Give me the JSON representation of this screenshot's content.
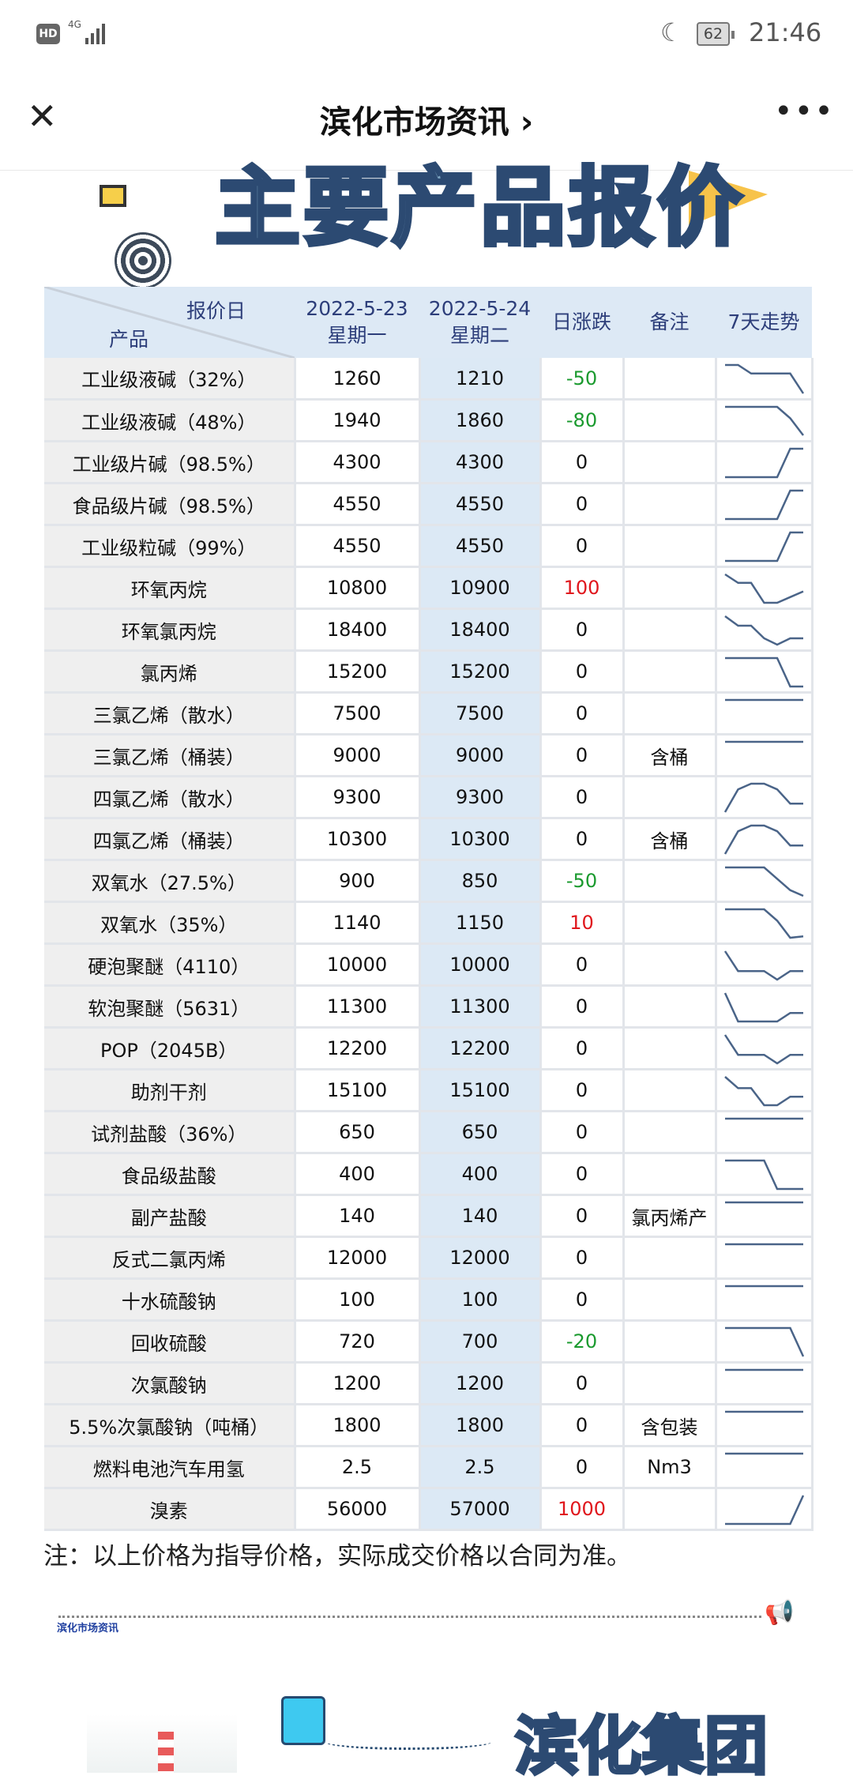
{
  "status_bar": {
    "hd": "HD",
    "network": "4G",
    "battery": "62",
    "time": "21:46"
  },
  "nav": {
    "title": "滨化市场资讯 ›",
    "close_icon": "close-icon",
    "more_icon": "more-icon"
  },
  "banner": {
    "title": "主要产品报价"
  },
  "table": {
    "header": {
      "corner_top": "报价日",
      "corner_bottom": "产品",
      "date1": "2022-5-23",
      "day1": "星期一",
      "date2": "2022-5-24",
      "day2": "星期二",
      "change": "日涨跌",
      "note": "备注",
      "trend": "7天走势"
    },
    "colors": {
      "up": "#e0161c",
      "down": "#1a9a2e",
      "trend_line": "#4a6488"
    },
    "rows": [
      {
        "product": "工业级液碱（32%）",
        "p1": "1260",
        "p2": "1210",
        "change": "-50",
        "note": "",
        "trend": [
          10,
          10,
          7,
          7,
          7,
          7,
          0
        ]
      },
      {
        "product": "工业级液碱（48%）",
        "p1": "1940",
        "p2": "1860",
        "change": "-80",
        "note": "",
        "trend": [
          10,
          10,
          10,
          10,
          10,
          6,
          0
        ]
      },
      {
        "product": "工业级片碱（98.5%）",
        "p1": "4300",
        "p2": "4300",
        "change": "0",
        "note": "",
        "trend": [
          0,
          0,
          0,
          0,
          0,
          10,
          10
        ]
      },
      {
        "product": "食品级片碱（98.5%）",
        "p1": "4550",
        "p2": "4550",
        "change": "0",
        "note": "",
        "trend": [
          0,
          0,
          0,
          0,
          0,
          10,
          10
        ]
      },
      {
        "product": "工业级粒碱（99%）",
        "p1": "4550",
        "p2": "4550",
        "change": "0",
        "note": "",
        "trend": [
          0,
          0,
          0,
          0,
          0,
          10,
          10
        ]
      },
      {
        "product": "环氧丙烷",
        "p1": "10800",
        "p2": "10900",
        "change": "100",
        "note": "",
        "trend": [
          10,
          7,
          7,
          0,
          0,
          2,
          4
        ]
      },
      {
        "product": "环氧氯丙烷",
        "p1": "18400",
        "p2": "18400",
        "change": "0",
        "note": "",
        "trend": [
          10,
          7,
          7,
          3,
          1,
          3,
          3
        ]
      },
      {
        "product": "氯丙烯",
        "p1": "15200",
        "p2": "15200",
        "change": "0",
        "note": "",
        "trend": [
          10,
          10,
          10,
          10,
          10,
          0,
          0
        ]
      },
      {
        "product": "三氯乙烯（散水）",
        "p1": "7500",
        "p2": "7500",
        "change": "0",
        "note": "",
        "trend": [
          5,
          5,
          5,
          5,
          5,
          5,
          5
        ]
      },
      {
        "product": "三氯乙烯（桶装）",
        "p1": "9000",
        "p2": "9000",
        "change": "0",
        "note": "含桶",
        "trend": [
          5,
          5,
          5,
          5,
          5,
          5,
          5
        ]
      },
      {
        "product": "四氯乙烯（散水）",
        "p1": "9300",
        "p2": "9300",
        "change": "0",
        "note": "",
        "trend": [
          0,
          8,
          10,
          10,
          8,
          3,
          3
        ]
      },
      {
        "product": "四氯乙烯（桶装）",
        "p1": "10300",
        "p2": "10300",
        "change": "0",
        "note": "含桶",
        "trend": [
          0,
          8,
          10,
          10,
          8,
          3,
          3
        ]
      },
      {
        "product": "双氧水（27.5%）",
        "p1": "900",
        "p2": "850",
        "change": "-50",
        "note": "",
        "trend": [
          10,
          10,
          10,
          10,
          6,
          2,
          0
        ]
      },
      {
        "product": "双氧水（35%）",
        "p1": "1140",
        "p2": "1150",
        "change": "10",
        "note": "",
        "trend": [
          10,
          10,
          10,
          10,
          6,
          0,
          0.5
        ]
      },
      {
        "product": "硬泡聚醚（4110）",
        "p1": "10000",
        "p2": "10000",
        "change": "0",
        "note": "",
        "trend": [
          10,
          3,
          3,
          3,
          0,
          3,
          3
        ]
      },
      {
        "product": "软泡聚醚（5631）",
        "p1": "11300",
        "p2": "11300",
        "change": "0",
        "note": "",
        "trend": [
          10,
          0,
          0,
          0,
          0,
          3,
          3
        ]
      },
      {
        "product": "POP（2045B）",
        "p1": "12200",
        "p2": "12200",
        "change": "0",
        "note": "",
        "trend": [
          10,
          3,
          3,
          3,
          0,
          3,
          3
        ]
      },
      {
        "product": "助剂干剂",
        "p1": "15100",
        "p2": "15100",
        "change": "0",
        "note": "",
        "trend": [
          10,
          6,
          6,
          0,
          0,
          3,
          3
        ]
      },
      {
        "product": "试剂盐酸（36%）",
        "p1": "650",
        "p2": "650",
        "change": "0",
        "note": "",
        "trend": [
          5,
          5,
          5,
          5,
          5,
          5,
          5
        ]
      },
      {
        "product": "食品级盐酸",
        "p1": "400",
        "p2": "400",
        "change": "0",
        "note": "",
        "trend": [
          10,
          10,
          10,
          10,
          0,
          0,
          0
        ]
      },
      {
        "product": "副产盐酸",
        "p1": "140",
        "p2": "140",
        "change": "0",
        "note": "氯丙烯产",
        "trend": [
          5,
          5,
          5,
          5,
          5,
          5,
          5
        ]
      },
      {
        "product": "反式二氯丙烯",
        "p1": "12000",
        "p2": "12000",
        "change": "0",
        "note": "",
        "trend": [
          5,
          5,
          5,
          5,
          5,
          5,
          5
        ]
      },
      {
        "product": "十水硫酸钠",
        "p1": "100",
        "p2": "100",
        "change": "0",
        "note": "",
        "trend": [
          5,
          5,
          5,
          5,
          5,
          5,
          5
        ]
      },
      {
        "product": "回收硫酸",
        "p1": "720",
        "p2": "700",
        "change": "-20",
        "note": "",
        "trend": [
          10,
          10,
          10,
          10,
          10,
          10,
          0
        ]
      },
      {
        "product": "次氯酸钠",
        "p1": "1200",
        "p2": "1200",
        "change": "0",
        "note": "",
        "trend": [
          5,
          5,
          5,
          5,
          5,
          5,
          5
        ]
      },
      {
        "product": "5.5%次氯酸钠（吨桶）",
        "p1": "1800",
        "p2": "1800",
        "change": "0",
        "note": "含包装",
        "trend": [
          5,
          5,
          5,
          5,
          5,
          5,
          5
        ]
      },
      {
        "product": "燃料电池汽车用氢",
        "p1": "2.5",
        "p2": "2.5",
        "change": "0",
        "note": "Nm3",
        "trend": [
          5,
          5,
          5,
          5,
          5,
          5,
          5
        ]
      },
      {
        "product": "溴素",
        "p1": "56000",
        "p2": "57000",
        "change": "1000",
        "note": "",
        "trend": [
          0,
          0,
          0,
          0,
          0,
          0,
          10
        ]
      }
    ]
  },
  "footnote": "注：以上价格为指导价格，实际成交价格以合同为准。",
  "footer": {
    "label": "滨化市场资讯",
    "logo_text": "滨化集团"
  }
}
